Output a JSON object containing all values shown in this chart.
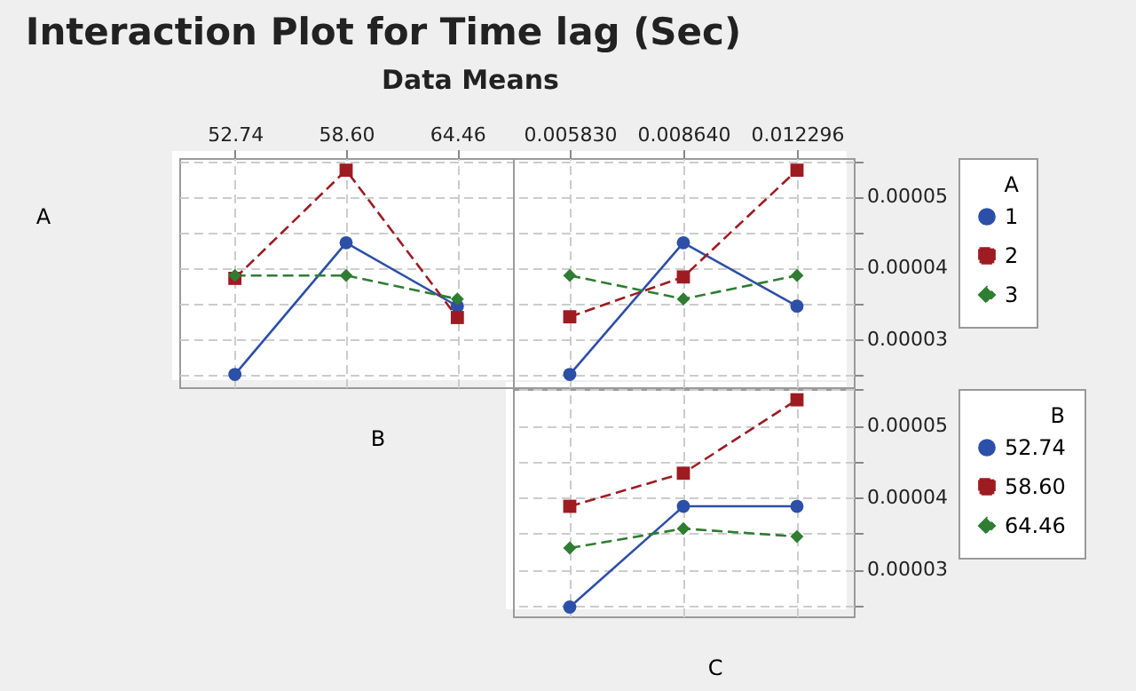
{
  "chart_data": [
    {
      "type": "line",
      "title": "Interaction Plot for Time lag (Sec)",
      "subtitle": "Data Means",
      "ylabel": "A",
      "xlabel": "B",
      "categories": [
        "52.74",
        "58.60",
        "64.46"
      ],
      "ylim": [
        2.32e-05,
        5.54e-05
      ],
      "yticks": [
        {
          "value": 2.5e-05,
          "label": null
        },
        3e-05,
        {
          "value": 3.5e-05,
          "label": null
        },
        4e-05,
        {
          "value": 4.5e-05,
          "label": null
        },
        5e-05,
        {
          "value": 5.5e-05,
          "label": null
        }
      ],
      "tick_labels": "x",
      "grid": true,
      "series": [
        {
          "color": "#2c4fa8",
          "marker": "circle",
          "line_style": "solid",
          "values": [
            2.5e-05,
            4.35e-05,
            3.46e-05
          ]
        },
        {
          "color": "#9e1b22",
          "marker": "square",
          "line_style": "dashed",
          "values": [
            3.85e-05,
            5.37e-05,
            3.3e-05
          ]
        },
        {
          "color": "#2e7d32",
          "marker": "diamond",
          "line_style": "dashed",
          "values": [
            3.89e-05,
            3.89e-05,
            3.56e-05
          ]
        }
      ]
    },
    {
      "type": "line",
      "categories": [
        "0.005830",
        "0.008640",
        "0.012296"
      ],
      "ylim": [
        2.32e-05,
        5.54e-05
      ],
      "yticks": [
        {
          "value": 2.5e-05,
          "label": null
        },
        {
          "value": 3e-05,
          "label": "0.00003"
        },
        {
          "value": 3.5e-05,
          "label": null
        },
        {
          "value": 4e-05,
          "label": "0.00004"
        },
        {
          "value": 4.5e-05,
          "label": null
        },
        {
          "value": 5e-05,
          "label": "0.00005"
        },
        {
          "value": 5.5e-05,
          "label": null
        }
      ],
      "grid": true,
      "legend": "right",
      "legend_title": "A",
      "series": [
        {
          "name": "1",
          "color": "#2c4fa8",
          "marker": "circle",
          "line_style": "solid",
          "values": [
            2.5e-05,
            4.35e-05,
            3.46e-05
          ]
        },
        {
          "name": "2",
          "color": "#9e1b22",
          "marker": "square",
          "line_style": "dashed",
          "values": [
            3.31e-05,
            3.87e-05,
            5.37e-05
          ]
        },
        {
          "name": "3",
          "color": "#2e7d32",
          "marker": "diamond",
          "line_style": "dashed",
          "values": [
            3.89e-05,
            3.56e-05,
            3.89e-05
          ]
        }
      ]
    },
    {
      "type": "line",
      "xlabel": "C",
      "categories": [
        "0.005830",
        "0.008640",
        "0.012296"
      ],
      "ylim": [
        2.35e-05,
        5.51e-05
      ],
      "yticks": [
        {
          "value": 2.5e-05,
          "label": null
        },
        {
          "value": 3e-05,
          "label": "0.00003"
        },
        {
          "value": 3.5e-05,
          "label": null
        },
        {
          "value": 4e-05,
          "label": "0.00004"
        },
        {
          "value": 4.5e-05,
          "label": null
        },
        {
          "value": 5e-05,
          "label": "0.00005"
        },
        {
          "value": 5.5e-05,
          "label": null
        }
      ],
      "tick_labels": "y",
      "grid": true,
      "legend": "right",
      "legend_title": "B",
      "series": [
        {
          "name": "52.74",
          "color": "#2c4fa8",
          "marker": "circle",
          "line_style": "solid",
          "values": [
            2.48e-05,
            3.88e-05,
            3.88e-05
          ]
        },
        {
          "name": "58.60",
          "color": "#9e1b22",
          "marker": "square",
          "line_style": "dashed",
          "values": [
            3.88e-05,
            4.34e-05,
            5.36e-05
          ]
        },
        {
          "name": "64.46",
          "color": "#2e7d32",
          "marker": "diamond",
          "line_style": "dashed",
          "values": [
            3.3e-05,
            3.57e-05,
            3.46e-05
          ]
        }
      ]
    }
  ]
}
